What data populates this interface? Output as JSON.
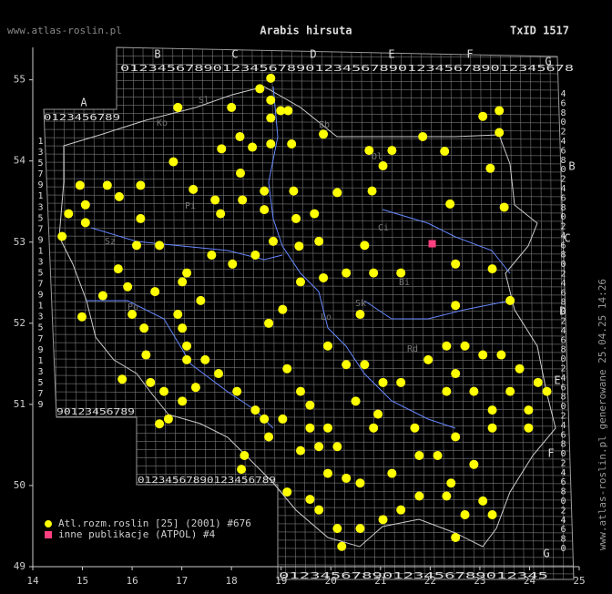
{
  "chart_data": {
    "type": "scatter",
    "title": "Arabis hirsuta",
    "site": "www.atlas-roslin.pl",
    "taxon": "TxID 1517",
    "footer": "www.atlas-roslin.pl generowane 25.04.25 14:26",
    "xlim": [
      14,
      25
    ],
    "xticks": [
      14,
      15,
      16,
      17,
      18,
      19,
      20,
      21,
      22,
      23,
      24,
      25
    ],
    "ylim": [
      49,
      55.4
    ],
    "yticks": [
      49,
      50,
      51,
      52,
      53,
      54,
      55
    ],
    "grid_letters_top": [
      "A",
      "B",
      "C",
      "D",
      "E",
      "F",
      "G"
    ],
    "grid_letters_right": [
      "B",
      "C",
      "D",
      "E",
      "F",
      "G"
    ],
    "grid_digits": {
      "top": "0123456789012345678901234567890123456789012345678",
      "zone_a": "0123456789",
      "left": "1357913579135791357913579",
      "right": "4680246802468024680246802468024680246802468024680",
      "row_a_bottom": "90123456789",
      "row_middle_bottom": "01234567890123456789",
      "row_bottom": "01234567890123456789012345"
    },
    "regions": [
      "Sl",
      "Ko",
      "Eb",
      "Ol",
      "Pi",
      "Ci",
      "Sz",
      "Sk",
      "Lo",
      "Rd",
      "Po",
      "Bi"
    ],
    "series": [
      {
        "name": "Atl.rozm.roslin [25] (2001) #676",
        "color": "#ffff00",
        "marker": "circle",
        "x": [
          18.79,
          18.57,
          18.79,
          18.99,
          18.79,
          16.92,
          18.0,
          19.14,
          17.8,
          18.17,
          18.42,
          18.79,
          19.21,
          19.85,
          16.83,
          18.18,
          14.95,
          15.5,
          15.74,
          16.17,
          16.17,
          15.06,
          15.06,
          14.72,
          14.59,
          17.23,
          17.67,
          18.22,
          18.66,
          18.66,
          17.78,
          19.25,
          20.13,
          20.83,
          20.77,
          21.23,
          21.05,
          21.85,
          22.29,
          23.21,
          22.4,
          23.49,
          23.06,
          23.39,
          23.39,
          19.3,
          19.67,
          19.36,
          19.76,
          18.84,
          18.48,
          18.02,
          17.6,
          17.1,
          17.01,
          16.09,
          16.55,
          15.72,
          15.41,
          15.91,
          16.46,
          17.38,
          16.0,
          14.99,
          16.24,
          16.92,
          17.01,
          17.1,
          17.1,
          17.47,
          17.74,
          16.28,
          16.37,
          16.64,
          17.01,
          16.73,
          16.55,
          15.8,
          17.28,
          18.11,
          18.48,
          18.66,
          18.75,
          18.26,
          19.03,
          19.39,
          19.58,
          19.58,
          19.94,
          19.76,
          20.13,
          19.39,
          20.5,
          21.05,
          21.41,
          20.95,
          20.86,
          21.69,
          21.96,
          22.33,
          22.7,
          23.06,
          23.43,
          23.8,
          24.17,
          24.35,
          22.51,
          22.88,
          23.25,
          23.61,
          23.98,
          22.33,
          23.98,
          23.25,
          22.51,
          22.15,
          22.88,
          20.31,
          20.68,
          19.94,
          19.12,
          18.75,
          19.03,
          20.59,
          20.86,
          20.31,
          21.41,
          20.68,
          19.39,
          19.85,
          22.51,
          23.25,
          23.61,
          22.51,
          19.12,
          19.58,
          19.76,
          20.13,
          20.22,
          20.59,
          21.05,
          21.41,
          21.78,
          22.33,
          22.7,
          22.51,
          23.06,
          23.25,
          18.2,
          19.94,
          20.59,
          21.23,
          21.78,
          22.42,
          20.31
        ],
        "values": [
          55.02,
          54.89,
          54.75,
          54.62,
          54.53,
          54.66,
          54.66,
          54.62,
          54.15,
          54.3,
          54.17,
          54.21,
          54.21,
          54.33,
          53.99,
          53.85,
          53.7,
          53.7,
          53.56,
          53.7,
          53.29,
          53.46,
          53.24,
          53.35,
          53.07,
          53.65,
          53.52,
          53.52,
          53.63,
          53.4,
          53.35,
          53.63,
          53.61,
          53.63,
          54.13,
          54.13,
          53.94,
          54.3,
          54.12,
          53.91,
          53.47,
          53.43,
          54.55,
          54.62,
          54.35,
          53.29,
          53.35,
          52.95,
          53.01,
          53.01,
          52.84,
          52.73,
          52.84,
          52.62,
          52.51,
          52.96,
          52.96,
          52.67,
          52.34,
          52.45,
          52.39,
          52.28,
          52.11,
          52.08,
          51.94,
          52.11,
          51.94,
          51.72,
          51.55,
          51.55,
          51.38,
          51.61,
          51.27,
          51.16,
          51.04,
          50.82,
          50.76,
          51.31,
          51.21,
          51.16,
          50.93,
          50.82,
          50.6,
          50.37,
          50.82,
          51.16,
          50.99,
          50.71,
          50.71,
          50.48,
          50.48,
          50.43,
          51.04,
          51.27,
          51.27,
          50.88,
          50.71,
          50.71,
          51.55,
          51.72,
          51.72,
          51.61,
          51.61,
          51.44,
          51.27,
          51.16,
          51.38,
          51.16,
          50.93,
          51.16,
          50.93,
          51.16,
          50.71,
          50.71,
          50.6,
          50.37,
          50.26,
          51.49,
          51.49,
          51.72,
          51.44,
          52.0,
          52.17,
          52.11,
          52.62,
          52.62,
          52.62,
          52.96,
          52.51,
          52.56,
          52.73,
          52.67,
          52.28,
          52.22,
          49.92,
          49.83,
          49.7,
          49.47,
          49.25,
          49.47,
          49.58,
          49.7,
          49.87,
          49.87,
          49.64,
          49.36,
          49.81,
          49.64,
          50.2,
          50.15,
          50.03,
          50.15,
          50.37,
          50.03,
          50.09
        ]
      },
      {
        "name": "inne publikacje (ATPOL) #4",
        "color": "#ff4080",
        "marker": "square",
        "x": [
          22.04
        ],
        "values": [
          52.98
        ]
      }
    ]
  }
}
